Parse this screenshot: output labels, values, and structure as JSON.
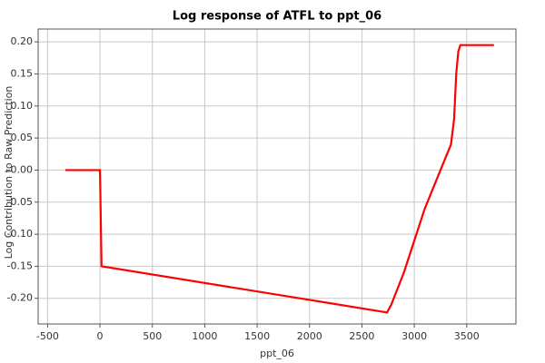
{
  "chart_data": {
    "type": "line",
    "title": "Log response of ATFL to ppt_06",
    "x_label": "ppt_06",
    "y_label": "Log Contribution to Raw Prediction",
    "x": [
      -330,
      0,
      15,
      2740,
      2780,
      2900,
      3000,
      3100,
      3200,
      3300,
      3350,
      3380,
      3400,
      3420,
      3440,
      3760
    ],
    "values": [
      0,
      0,
      -0.15,
      -0.222,
      -0.21,
      -0.16,
      -0.11,
      -0.06,
      -0.02,
      0.02,
      0.04,
      0.08,
      0.15,
      0.185,
      0.195,
      0.195
    ],
    "color": "#ff0000",
    "xlim": [
      -590,
      3970
    ],
    "xticks": [
      -500,
      0,
      500,
      1000,
      1500,
      2000,
      2500,
      3000,
      3500
    ],
    "ylim": [
      -0.24,
      0.22
    ],
    "yticks": [
      {
        "value": 0.2,
        "label": "0.20"
      },
      {
        "value": 0.15,
        "label": "0.15"
      },
      {
        "value": 0.1,
        "label": "0.10"
      },
      {
        "value": 0.05,
        "label": "0.05"
      },
      {
        "value": 0,
        "label": "-0.00"
      },
      {
        "value": -0.05,
        "label": "-0.05"
      },
      {
        "value": -0.1,
        "label": "-0.10"
      },
      {
        "value": -0.15,
        "label": "-0.15"
      },
      {
        "value": -0.2,
        "label": "-0.20"
      }
    ],
    "grid": true
  }
}
